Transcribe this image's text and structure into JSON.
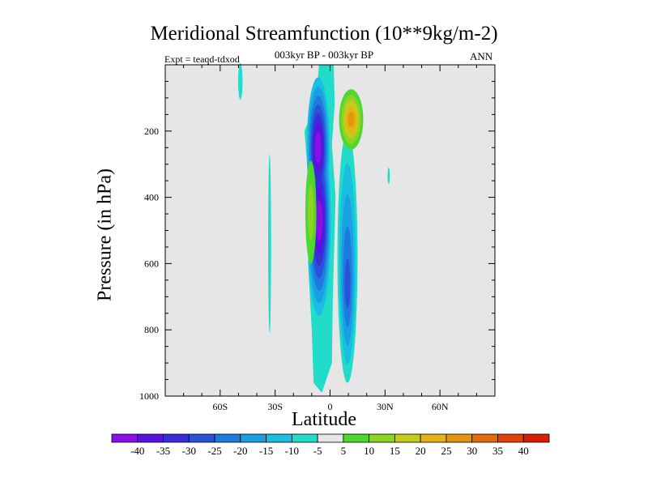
{
  "chart_data": {
    "type": "contour",
    "title": "Meridional Streamfunction (10**9kg/m-2)",
    "subtitle": "003kyr BP - 003kyr BP",
    "experiment_label": "Expt = teaqd-tdxod",
    "season": "ANN",
    "xlabel": "Latitude",
    "ylabel": "Pressure (in hPa)",
    "xlim": [
      -90,
      90
    ],
    "ylim": [
      1000,
      0
    ],
    "x_ticks": [
      {
        "value": -60,
        "label": "60S"
      },
      {
        "value": -30,
        "label": "30S"
      },
      {
        "value": 0,
        "label": "0"
      },
      {
        "value": 30,
        "label": "30N"
      },
      {
        "value": 60,
        "label": "60N"
      }
    ],
    "y_ticks": [
      {
        "value": 200,
        "label": "200"
      },
      {
        "value": 400,
        "label": "400"
      },
      {
        "value": 600,
        "label": "600"
      },
      {
        "value": 800,
        "label": "800"
      },
      {
        "value": 1000,
        "label": "1000"
      }
    ],
    "background_color": "#e6e6e6",
    "colorbar": {
      "labels": [
        "-40",
        "-35",
        "-30",
        "-25",
        "-20",
        "-15",
        "-10",
        "-5",
        "5",
        "10",
        "15",
        "20",
        "25",
        "30",
        "35",
        "40"
      ],
      "colors": [
        "#8a10e8",
        "#5a12e0",
        "#3a2cd8",
        "#2a52d8",
        "#1f7ade",
        "#1aa0e2",
        "#18bfe0",
        "#20dcc8",
        "#e6e6e6",
        "#4cd82e",
        "#8cd422",
        "#c4cc1a",
        "#e4b414",
        "#e4940e",
        "#e46c0c",
        "#e0420a",
        "#d81e06"
      ]
    },
    "features": [
      {
        "name": "main-negative-cell",
        "sign": "negative",
        "lat_range": [
          -13,
          2
        ],
        "pressure_range": [
          0,
          990
        ],
        "min_value": -40,
        "core_pressures": [
          250,
          470
        ]
      },
      {
        "name": "secondary-negative-cell",
        "sign": "negative",
        "lat_range": [
          5,
          14
        ],
        "pressure_range": [
          200,
          960
        ],
        "min_value": -25
      },
      {
        "name": "upper-positive-cell",
        "sign": "positive",
        "lat_range": [
          7,
          15
        ],
        "pressure_range": [
          60,
          230
        ],
        "max_value": 25
      },
      {
        "name": "mid-positive-cell",
        "sign": "positive",
        "lat_range": [
          -13,
          -8
        ],
        "pressure_range": [
          290,
          600
        ],
        "max_value": 10
      }
    ]
  }
}
